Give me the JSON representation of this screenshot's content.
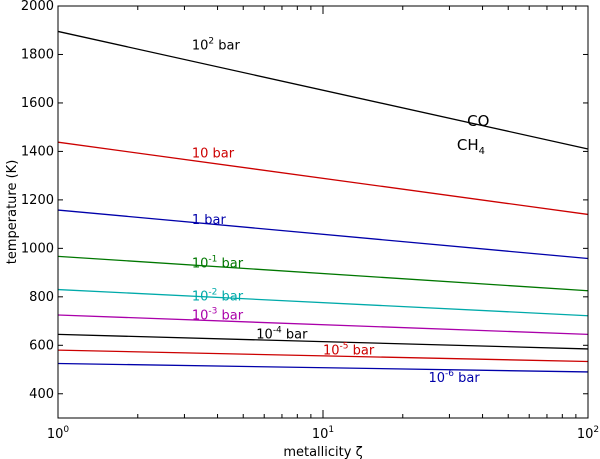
{
  "chart_data": {
    "type": "line",
    "xscale": "log",
    "xlim": [
      1,
      100
    ],
    "ylim": [
      300,
      2000
    ],
    "xlabel": "metallicity ζ",
    "ylabel": "temperature (K)",
    "x_ticks": [
      {
        "value": 1,
        "base": "10",
        "exp": "0"
      },
      {
        "value": 10,
        "base": "10",
        "exp": "1"
      },
      {
        "value": 100,
        "base": "10",
        "exp": "2"
      }
    ],
    "y_ticks": [
      400,
      600,
      800,
      1000,
      1200,
      1400,
      1600,
      1800,
      2000
    ],
    "grid": false,
    "legend": "none",
    "series": [
      {
        "name": "10^2 bar",
        "label_base": "10",
        "label_exp": "2",
        "label_suffix": " bar",
        "color": "#000000",
        "x": [
          1,
          100
        ],
        "y": [
          1895,
          1410
        ],
        "label_x": 3.2,
        "label_y": 1820
      },
      {
        "name": "10 bar",
        "label_base": "10 bar",
        "label_exp": "",
        "label_suffix": "",
        "color": "#cc0000",
        "x": [
          1,
          100
        ],
        "y": [
          1438,
          1140
        ],
        "label_x": 3.2,
        "label_y": 1375
      },
      {
        "name": "1 bar",
        "label_base": "1 bar",
        "label_exp": "",
        "label_suffix": "",
        "color": "#0000aa",
        "x": [
          1,
          100
        ],
        "y": [
          1158,
          958
        ],
        "label_x": 3.2,
        "label_y": 1100
      },
      {
        "name": "10^-1 bar",
        "label_base": "10",
        "label_exp": "-1",
        "label_suffix": " bar",
        "color": "#007700",
        "x": [
          1,
          100
        ],
        "y": [
          967,
          825
        ],
        "label_x": 3.2,
        "label_y": 922
      },
      {
        "name": "10^-2 bar",
        "label_base": "10",
        "label_exp": "-2",
        "label_suffix": " bar",
        "color": "#00aaaa",
        "x": [
          1,
          100
        ],
        "y": [
          830,
          722
        ],
        "label_x": 3.2,
        "label_y": 785
      },
      {
        "name": "10^-3 bar",
        "label_base": "10",
        "label_exp": "-3",
        "label_suffix": " bar",
        "color": "#aa00aa",
        "x": [
          1,
          100
        ],
        "y": [
          725,
          645
        ],
        "label_x": 3.2,
        "label_y": 707
      },
      {
        "name": "10^-4 bar",
        "label_base": "10",
        "label_exp": "-4",
        "label_suffix": " bar",
        "color": "#000000",
        "x": [
          1,
          100
        ],
        "y": [
          645,
          585
        ],
        "label_x": 5.6,
        "label_y": 628
      },
      {
        "name": "10^-5 bar",
        "label_base": "10",
        "label_exp": "-5",
        "label_suffix": " bar",
        "color": "#cc0000",
        "x": [
          1,
          100
        ],
        "y": [
          580,
          533
        ],
        "label_x": 10,
        "label_y": 562
      },
      {
        "name": "10^-6 bar",
        "label_base": "10",
        "label_exp": "-6",
        "label_suffix": " bar",
        "color": "#0000aa",
        "x": [
          1,
          100
        ],
        "y": [
          525,
          490
        ],
        "label_x": 25,
        "label_y": 448
      }
    ],
    "annotations": [
      {
        "text": "CO",
        "sub": "",
        "x": 35,
        "y": 1505
      },
      {
        "text": "CH",
        "sub": "4",
        "x": 32,
        "y": 1405
      }
    ]
  }
}
